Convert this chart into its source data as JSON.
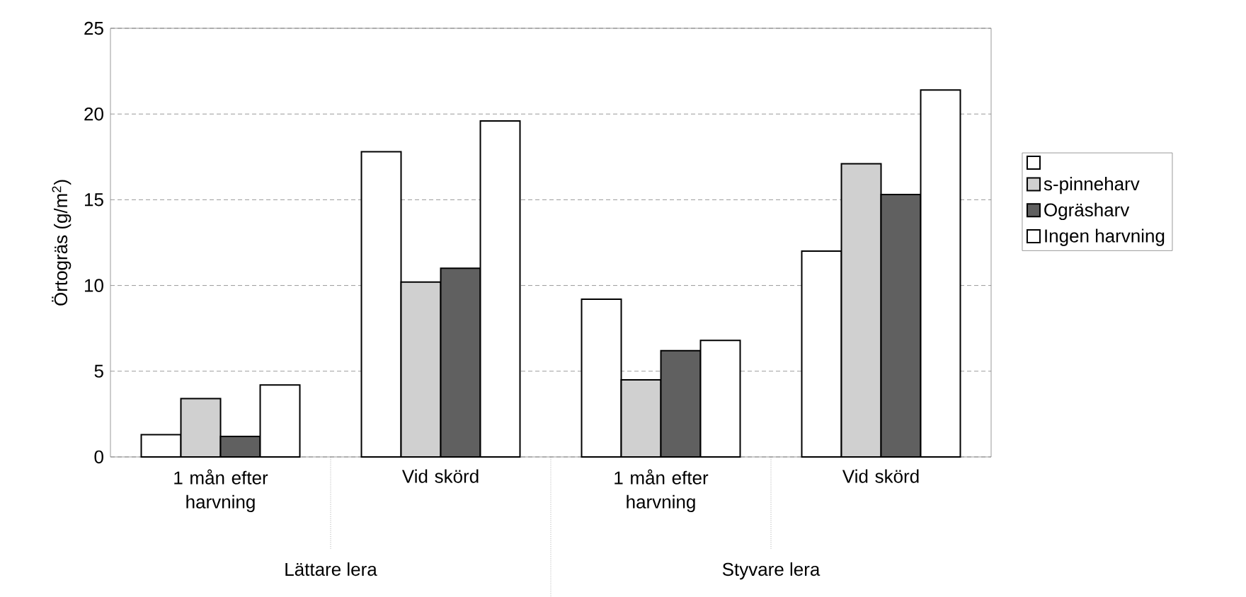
{
  "chart_data": {
    "type": "bar",
    "ylabel": "Örtogräs (g/m$^{2}$)",
    "categories": [
      "1 mån efter harvning",
      "Vid skörd",
      "1 mån efter harvning",
      "Vid skörd"
    ],
    "series": [
      {
        "color": "#ffffff",
        "values": [
          1.3,
          17.8,
          9.2,
          12.0
        ]
      },
      {
        "name": "s-pinneharv",
        "color": "#d0d0d0",
        "values": [
          3.4,
          10.2,
          4.5,
          17.1
        ]
      },
      {
        "name": "Ogräsharv",
        "color": "#606060",
        "values": [
          1.2,
          11.0,
          6.2,
          15.3
        ]
      },
      {
        "name": "Ingen harvning",
        "color": "#ffffff",
        "values": [
          4.2,
          19.6,
          6.8,
          21.4
        ]
      }
    ],
    "annotations": [
      "Lättare lera",
      "Styvare lera"
    ],
    "ylim": [
      0,
      25
    ],
    "yticks": [
      0,
      5,
      10,
      15,
      20,
      25
    ],
    "grid": "y",
    "legend": "right"
  }
}
